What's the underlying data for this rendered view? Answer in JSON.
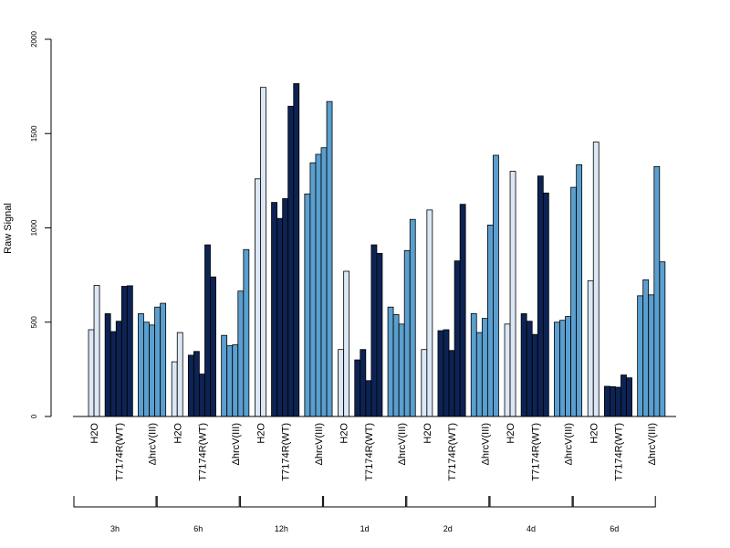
{
  "chart_data": {
    "type": "bar",
    "ylabel": "Raw Signal",
    "ylim": [
      0,
      2000
    ],
    "yticks": [
      0,
      500,
      1000,
      1500,
      2000
    ],
    "grid": false,
    "colors": {
      "H2O": "#dbe7f5",
      "T7174R(WT)": "#0c2353",
      "ΔhrcV(III)": "#5a9fcf"
    },
    "treatments": [
      "H2O",
      "T7174R(WT)",
      "ΔhrcV(III)"
    ],
    "timepoints": [
      {
        "name": "3h",
        "groups": [
          {
            "treatment": "H2O",
            "values": [
              460,
              695
            ]
          },
          {
            "treatment": "T7174R(WT)",
            "values": [
              545,
              450,
              505,
              690,
              693
            ]
          },
          {
            "treatment": "ΔhrcV(III)",
            "values": [
              545,
              500,
              485,
              580,
              600
            ]
          }
        ]
      },
      {
        "name": "6h",
        "groups": [
          {
            "treatment": "H2O",
            "values": [
              290,
              445
            ]
          },
          {
            "treatment": "T7174R(WT)",
            "values": [
              325,
              345,
              225,
              910,
              740
            ]
          },
          {
            "treatment": "ΔhrcV(III)",
            "values": [
              430,
              375,
              380,
              665,
              885
            ]
          }
        ]
      },
      {
        "name": "12h",
        "groups": [
          {
            "treatment": "H2O",
            "values": [
              1260,
              1745
            ]
          },
          {
            "treatment": "T7174R(WT)",
            "values": [
              1135,
              1050,
              1155,
              1645,
              1765
            ]
          },
          {
            "treatment": "ΔhrcV(III)",
            "values": [
              1180,
              1345,
              1390,
              1425,
              1670
            ]
          }
        ]
      },
      {
        "name": "1d",
        "groups": [
          {
            "treatment": "H2O",
            "values": [
              355,
              770
            ]
          },
          {
            "treatment": "T7174R(WT)",
            "values": [
              300,
              355,
              190,
              910,
              865
            ]
          },
          {
            "treatment": "ΔhrcV(III)",
            "values": [
              580,
              540,
              490,
              880,
              1045
            ]
          }
        ]
      },
      {
        "name": "2d",
        "groups": [
          {
            "treatment": "H2O",
            "values": [
              355,
              1095
            ]
          },
          {
            "treatment": "T7174R(WT)",
            "values": [
              455,
              460,
              350,
              825,
              1125
            ]
          },
          {
            "treatment": "ΔhrcV(III)",
            "values": [
              545,
              445,
              520,
              1015,
              1385
            ]
          }
        ]
      },
      {
        "name": "4d",
        "groups": [
          {
            "treatment": "H2O",
            "values": [
              490,
              1300
            ]
          },
          {
            "treatment": "T7174R(WT)",
            "values": [
              545,
              505,
              435,
              1275,
              1185
            ]
          },
          {
            "treatment": "ΔhrcV(III)",
            "values": [
              500,
              510,
              530,
              1215,
              1335
            ]
          }
        ]
      },
      {
        "name": "6d",
        "groups": [
          {
            "treatment": "H2O",
            "values": [
              720,
              1455
            ]
          },
          {
            "treatment": "T7174R(WT)",
            "values": [
              160,
              158,
              155,
              220,
              205
            ]
          },
          {
            "treatment": "ΔhrcV(III)",
            "values": [
              640,
              725,
              645,
              1325,
              820
            ]
          }
        ]
      }
    ]
  }
}
